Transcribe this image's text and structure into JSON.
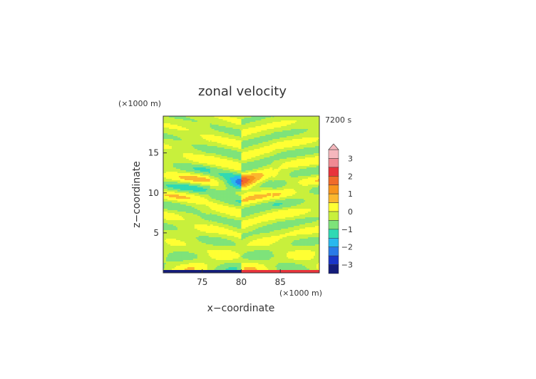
{
  "chart_data": {
    "type": "heatmap",
    "title": "zonal velocity",
    "time_label": "7200 s",
    "xlabel": "x−coordinate",
    "ylabel": "z−coordinate",
    "x_unit": "(×1000 m)",
    "y_unit": "(×1000 m)",
    "xlim": [
      70,
      90
    ],
    "ylim": [
      0,
      19.6
    ],
    "xticks": [
      75,
      80,
      85
    ],
    "yticks": [
      5,
      10,
      15
    ],
    "colorbar": {
      "ticks": [
        3,
        2,
        1,
        0,
        -1,
        -2,
        -3
      ],
      "range": [
        -3.5,
        3.5
      ],
      "extend": "max",
      "levels": [
        {
          "min": 3.0,
          "max": 3.5,
          "color": "#f5b7bd"
        },
        {
          "min": 2.5,
          "max": 3.0,
          "color": "#f08a93"
        },
        {
          "min": 2.0,
          "max": 2.5,
          "color": "#e8333c"
        },
        {
          "min": 1.5,
          "max": 2.0,
          "color": "#f06b2a"
        },
        {
          "min": 1.0,
          "max": 1.5,
          "color": "#f7941d"
        },
        {
          "min": 0.5,
          "max": 1.0,
          "color": "#fbb72e"
        },
        {
          "min": 0.0,
          "max": 0.5,
          "color": "#ffff33"
        },
        {
          "min": -0.5,
          "max": 0.0,
          "color": "#c8f03c"
        },
        {
          "min": -1.0,
          "max": -0.5,
          "color": "#7ee37a"
        },
        {
          "min": -1.5,
          "max": -1.0,
          "color": "#2fd9b4"
        },
        {
          "min": -2.0,
          "max": -1.5,
          "color": "#29b8ee"
        },
        {
          "min": -2.5,
          "max": -2.0,
          "color": "#2a7ae8"
        },
        {
          "min": -3.0,
          "max": -2.5,
          "color": "#1a35c8"
        },
        {
          "min": -3.5,
          "max": -3.0,
          "color": "#141c7a"
        }
      ]
    }
  }
}
